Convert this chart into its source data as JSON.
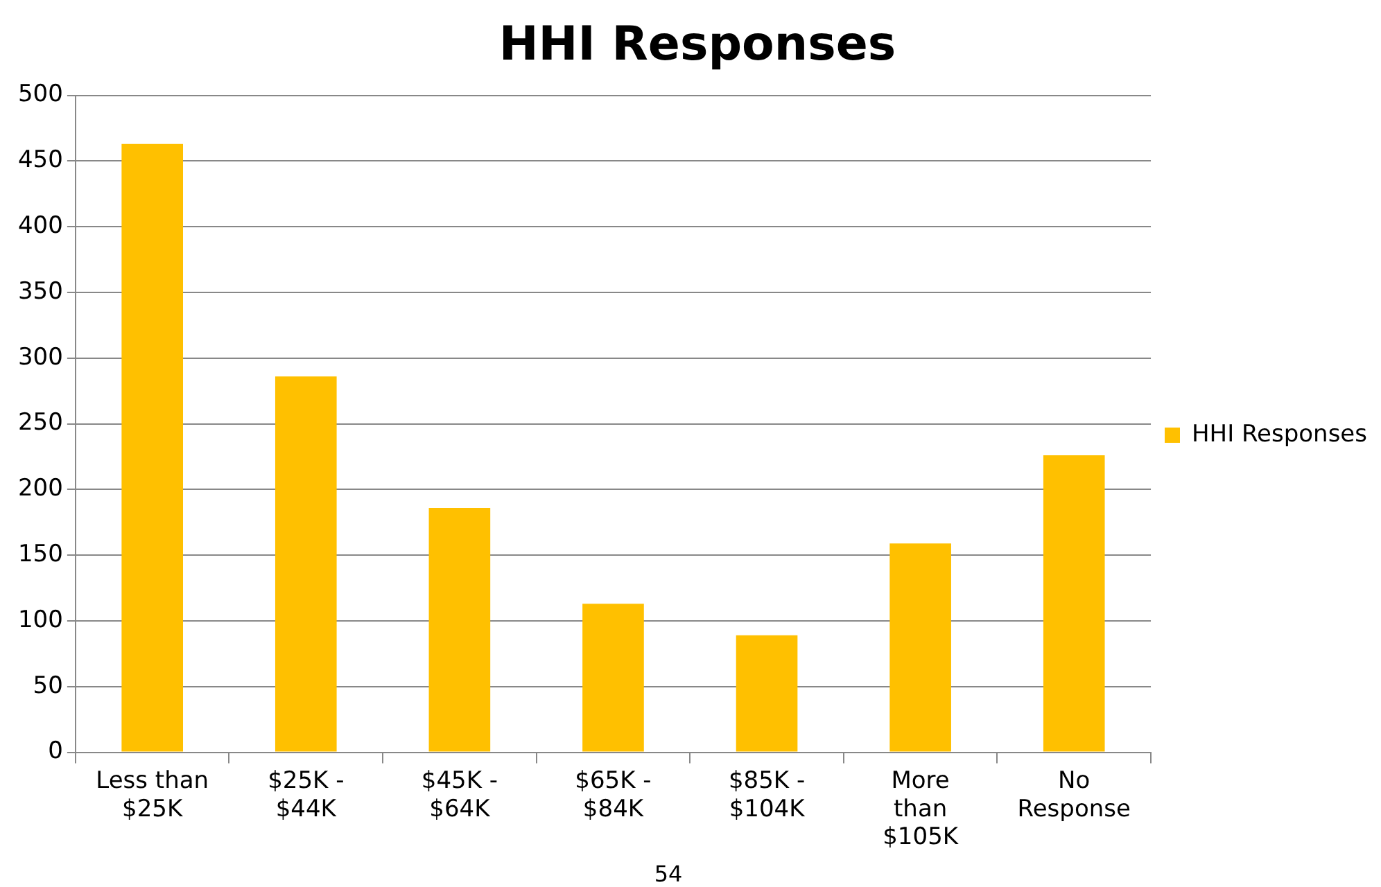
{
  "chart_data": {
    "type": "bar",
    "title": "HHI Responses",
    "categories": [
      "Less than\n$25K",
      "$25K -\n$44K",
      "$45K -\n$64K",
      "$65K -\n$84K",
      "$85K -\n$104K",
      "More\nthan\n$105K",
      "No\nResponse"
    ],
    "series": [
      {
        "name": "HHI Responses",
        "color": "#ffc000",
        "values": [
          463,
          286,
          186,
          113,
          89,
          159,
          226
        ]
      }
    ],
    "ylim": [
      0,
      500
    ],
    "yticks": [
      0,
      50,
      100,
      150,
      200,
      250,
      300,
      350,
      400,
      450,
      500
    ],
    "grid": "y",
    "legend": "right",
    "annotations": [
      "54"
    ]
  }
}
